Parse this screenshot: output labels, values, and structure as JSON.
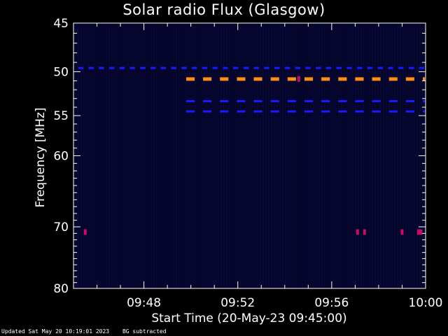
{
  "chart_data": {
    "type": "heatmap",
    "title": "Solar radio Flux (Glasgow)",
    "ylabel": "Frequency [MHz]",
    "xlabel": "Start Time (20-May-23 09:45:00)",
    "x_ticks": [
      "09:48",
      "09:52",
      "09:56",
      "10:00"
    ],
    "x_tick_minutes": [
      48,
      52,
      56,
      60
    ],
    "xlim_minutes": [
      45,
      60
    ],
    "y_ticks": [
      45,
      50,
      55,
      60,
      70,
      80
    ],
    "ylim": [
      45,
      80
    ],
    "y_scale": "log",
    "grid": false,
    "colors": {
      "background": "#000000",
      "plot_background": "#05052a",
      "axes": "#ffffff",
      "band_low": "#1a1aff",
      "band_mid": "#c01060",
      "band_high": "#ff8c1a"
    },
    "emission_bands": [
      {
        "freq_mhz": 49.6,
        "start_min": 45.2,
        "end_min": 60,
        "dash_min": 0.22,
        "intensity": "low"
      },
      {
        "freq_mhz": 50.8,
        "start_min": 49.8,
        "end_min": 60,
        "dash_min": 0.36,
        "intensity": "high"
      },
      {
        "freq_mhz": 53.3,
        "start_min": 49.8,
        "end_min": 60,
        "dash_min": 0.36,
        "intensity": "low"
      },
      {
        "freq_mhz": 54.5,
        "start_min": 49.8,
        "end_min": 60,
        "dash_min": 0.36,
        "intensity": "low"
      }
    ],
    "spots": [
      {
        "minute": 45.5,
        "freq_mhz": 70.8,
        "intensity": "mid"
      },
      {
        "minute": 54.6,
        "freq_mhz": 50.8,
        "intensity": "mid"
      },
      {
        "minute": 57.1,
        "freq_mhz": 70.8,
        "intensity": "mid"
      },
      {
        "minute": 57.4,
        "freq_mhz": 70.8,
        "intensity": "mid"
      },
      {
        "minute": 59.0,
        "freq_mhz": 70.8,
        "intensity": "mid"
      },
      {
        "minute": 59.7,
        "freq_mhz": 70.8,
        "intensity": "mid"
      },
      {
        "minute": 59.8,
        "freq_mhz": 70.8,
        "intensity": "mid"
      }
    ]
  },
  "footer": {
    "updated": "Updated Sat May 20 10:19:01 2023",
    "note": "BG subtracted"
  }
}
